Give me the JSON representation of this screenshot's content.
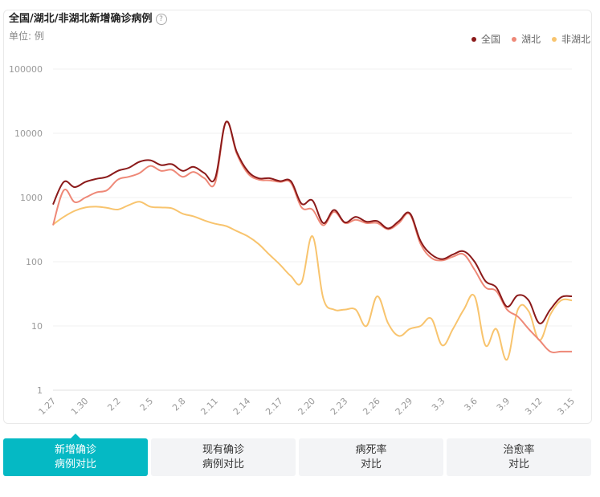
{
  "header": {
    "title": "全国/湖北/非湖北新增确诊病例",
    "help_icon": "?",
    "unit": "单位: 例"
  },
  "legend": [
    {
      "label": "全国",
      "color": "#8b1a1a"
    },
    {
      "label": "湖北",
      "color": "#ee8877"
    },
    {
      "label": "非湖北",
      "color": "#f8c46e"
    }
  ],
  "tabs": [
    {
      "line1": "新增确诊",
      "line2": "病例对比",
      "active": true
    },
    {
      "line1": "现有确诊",
      "line2": "病例对比",
      "active": false
    },
    {
      "line1": "病死率",
      "line2": "对比",
      "active": false
    },
    {
      "line1": "治愈率",
      "line2": "对比",
      "active": false
    }
  ],
  "chart_data": {
    "type": "line",
    "scale": "log",
    "ylim": [
      1,
      100000
    ],
    "y_ticks": [
      "100000",
      "10000",
      "1000",
      "100",
      "10",
      "1"
    ],
    "x_ticks": [
      "1.27",
      "1.30",
      "2.2",
      "2.5",
      "2.8",
      "2.11",
      "2.14",
      "2.17",
      "2.20",
      "2.23",
      "2.26",
      "2.29",
      "3.3",
      "3.6",
      "3.9",
      "3.12",
      "3.15"
    ],
    "x": [
      "1.27",
      "1.28",
      "1.29",
      "1.30",
      "1.31",
      "2.1",
      "2.2",
      "2.3",
      "2.4",
      "2.5",
      "2.6",
      "2.7",
      "2.8",
      "2.9",
      "2.10",
      "2.11",
      "2.12",
      "2.13",
      "2.14",
      "2.15",
      "2.16",
      "2.17",
      "2.18",
      "2.19",
      "2.20",
      "2.21",
      "2.22",
      "2.23",
      "2.24",
      "2.25",
      "2.26",
      "2.27",
      "2.28",
      "2.29",
      "3.1",
      "3.2",
      "3.3",
      "3.4",
      "3.5",
      "3.6",
      "3.7",
      "3.8",
      "3.9",
      "3.10",
      "3.11",
      "3.12",
      "3.13",
      "3.14",
      "3.15"
    ],
    "series": [
      {
        "name": "全国",
        "color": "#8b1a1a",
        "values": [
          780,
          1750,
          1450,
          1750,
          1950,
          2100,
          2600,
          2900,
          3600,
          3800,
          3200,
          3300,
          2600,
          3000,
          2400,
          2000,
          15000,
          5100,
          2600,
          2000,
          2000,
          1800,
          1800,
          800,
          900,
          400,
          640,
          410,
          500,
          420,
          430,
          330,
          430,
          570,
          210,
          130,
          110,
          130,
          145,
          100,
          50,
          40,
          20,
          30,
          25,
          11,
          18,
          28,
          29
        ]
      },
      {
        "name": "湖北",
        "color": "#ee8877",
        "values": [
          370,
          1300,
          850,
          1000,
          1200,
          1300,
          1900,
          2100,
          2400,
          3100,
          2600,
          2700,
          2100,
          2500,
          2000,
          1700,
          14800,
          4800,
          2400,
          1900,
          1850,
          1750,
          1700,
          700,
          650,
          370,
          600,
          400,
          450,
          400,
          400,
          320,
          400,
          550,
          190,
          115,
          105,
          120,
          130,
          75,
          40,
          35,
          18,
          14,
          9,
          6,
          4,
          4,
          4
        ]
      },
      {
        "name": "非湖北",
        "color": "#f8c46e",
        "values": [
          380,
          500,
          620,
          700,
          720,
          690,
          650,
          760,
          860,
          720,
          700,
          680,
          560,
          510,
          440,
          390,
          360,
          300,
          250,
          190,
          130,
          90,
          60,
          48,
          250,
          27,
          18,
          18,
          18,
          10,
          29,
          11,
          7,
          9,
          10,
          13,
          5,
          9,
          18,
          29,
          5,
          9,
          3,
          18,
          17,
          6,
          15,
          25,
          25
        ]
      }
    ]
  }
}
